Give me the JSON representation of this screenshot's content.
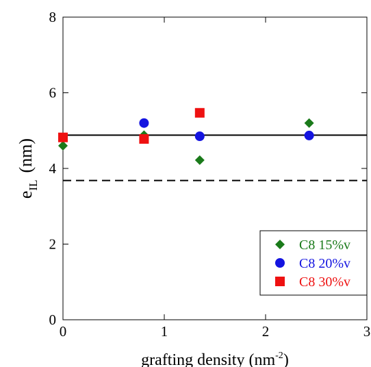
{
  "chart_data": {
    "type": "scatter",
    "title": "",
    "xlabel": "grafting density (nm",
    "xlabel_sup": "-2",
    "xlabel_close": ")",
    "ylabel_main": "e",
    "ylabel_sub": "IL",
    "ylabel_unit": "(nm)",
    "xlim": [
      0,
      3
    ],
    "ylim": [
      0,
      8
    ],
    "xticks": [
      0,
      1,
      2,
      3
    ],
    "yticks": [
      0,
      2,
      4,
      6,
      8
    ],
    "grid": false,
    "legend_position": "lower-right",
    "series": [
      {
        "name": "C8 15%v",
        "marker": "diamond",
        "color": "#1a7a1a",
        "x": [
          0.0,
          0.8,
          1.35,
          2.43
        ],
        "y": [
          4.6,
          4.88,
          4.22,
          5.2
        ]
      },
      {
        "name": "C8 20%v",
        "marker": "circle",
        "color": "#1414e0",
        "x": [
          0.8,
          1.35,
          2.43
        ],
        "y": [
          5.2,
          4.85,
          4.87
        ]
      },
      {
        "name": "C8 30%v",
        "marker": "square",
        "color": "#ee1111",
        "x": [
          0.0,
          0.8,
          1.35
        ],
        "y": [
          4.82,
          4.78,
          5.47
        ]
      }
    ],
    "reference_lines": [
      {
        "style": "solid",
        "y": 4.88
      },
      {
        "style": "dashed",
        "y": 3.68
      }
    ]
  }
}
